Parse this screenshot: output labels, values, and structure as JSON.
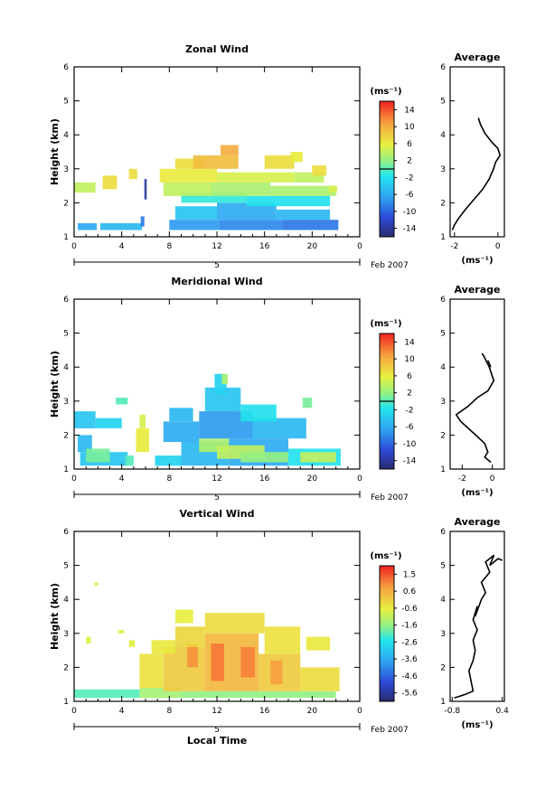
{
  "chart_data": [
    {
      "type": "heatmap",
      "title": "Zonal Wind",
      "ylabel": "Height (km)",
      "xticks": [
        "0",
        "4",
        "8",
        "12",
        "16",
        "20",
        "0"
      ],
      "yticks": [
        "1",
        "2",
        "3",
        "4",
        "5",
        "6"
      ],
      "xlim": [
        0,
        24
      ],
      "ylim": [
        1,
        6
      ],
      "date_day": "5",
      "date_label": "Feb 2007",
      "colorbar": {
        "unit": "(ms⁻¹)",
        "labels": [
          "14",
          "10",
          "6",
          "2",
          "-2",
          "-6",
          "-10",
          "-14"
        ],
        "range": [
          -16,
          16
        ]
      },
      "cells": [
        {
          "x": [
            0.3,
            1.9
          ],
          "y": [
            1.2,
            1.4
          ],
          "v": -6
        },
        {
          "x": [
            2.2,
            5.7
          ],
          "y": [
            1.2,
            1.4
          ],
          "v": -5
        },
        {
          "x": [
            8.0,
            12.2
          ],
          "y": [
            1.2,
            1.5
          ],
          "v": -7
        },
        {
          "x": [
            12.2,
            17.5
          ],
          "y": [
            1.2,
            1.5
          ],
          "v": -8
        },
        {
          "x": [
            17.5,
            22.2
          ],
          "y": [
            1.2,
            1.5
          ],
          "v": -9
        },
        {
          "x": [
            8.5,
            12.0
          ],
          "y": [
            1.5,
            1.9
          ],
          "v": -4
        },
        {
          "x": [
            12.0,
            17.0
          ],
          "y": [
            1.5,
            2.0
          ],
          "v": -6
        },
        {
          "x": [
            17.0,
            21.5
          ],
          "y": [
            1.5,
            1.8
          ],
          "v": -5
        },
        {
          "x": [
            9.0,
            14.5
          ],
          "y": [
            2.0,
            2.3
          ],
          "v": -1
        },
        {
          "x": [
            14.5,
            21.5
          ],
          "y": [
            1.9,
            2.2
          ],
          "v": -2
        },
        {
          "x": [
            7.5,
            11.5
          ],
          "y": [
            2.2,
            2.6
          ],
          "v": 4
        },
        {
          "x": [
            11.5,
            16.5
          ],
          "y": [
            2.2,
            2.6
          ],
          "v": 3
        },
        {
          "x": [
            16.5,
            22.0
          ],
          "y": [
            2.2,
            2.5
          ],
          "v": 3
        },
        {
          "x": [
            7.2,
            12.0
          ],
          "y": [
            2.6,
            3.0
          ],
          "v": 6
        },
        {
          "x": [
            12.0,
            18.5
          ],
          "y": [
            2.6,
            2.9
          ],
          "v": 5
        },
        {
          "x": [
            18.5,
            21.0
          ],
          "y": [
            2.6,
            2.9
          ],
          "v": 4
        },
        {
          "x": [
            8.5,
            11.0
          ],
          "y": [
            3.0,
            3.3
          ],
          "v": 7
        },
        {
          "x": [
            10.0,
            13.8
          ],
          "y": [
            3.0,
            3.4
          ],
          "v": 9
        },
        {
          "x": [
            12.3,
            13.8
          ],
          "y": [
            3.4,
            3.7
          ],
          "v": 10
        },
        {
          "x": [
            16.0,
            18.5
          ],
          "y": [
            3.0,
            3.4
          ],
          "v": 7
        },
        {
          "x": [
            18.2,
            19.2
          ],
          "y": [
            3.2,
            3.5
          ],
          "v": 6
        },
        {
          "x": [
            0.0,
            1.8
          ],
          "y": [
            2.3,
            2.6
          ],
          "v": 4
        },
        {
          "x": [
            2.4,
            3.6
          ],
          "y": [
            2.4,
            2.8
          ],
          "v": 7
        },
        {
          "x": [
            4.6,
            5.3
          ],
          "y": [
            2.7,
            3.0
          ],
          "v": 7
        },
        {
          "x": [
            5.9,
            6.1
          ],
          "y": [
            2.1,
            2.7
          ],
          "v": -14
        },
        {
          "x": [
            5.6,
            5.9
          ],
          "y": [
            1.3,
            1.6
          ],
          "v": -9
        },
        {
          "x": [
            20.0,
            21.2
          ],
          "y": [
            2.8,
            3.1
          ],
          "v": 7
        },
        {
          "x": [
            21.4,
            22.1
          ],
          "y": [
            2.3,
            2.5
          ],
          "v": 5
        }
      ],
      "profile": {
        "title": "Average",
        "xlabel": "(ms⁻¹)",
        "xticks": [
          "-2",
          "0"
        ],
        "xlim": [
          -2.2,
          0.3
        ],
        "ylim": [
          1,
          6
        ],
        "points": [
          [
            -0.9,
            4.5
          ],
          [
            -0.8,
            4.3
          ],
          [
            -0.6,
            4.05
          ],
          [
            -0.3,
            3.8
          ],
          [
            0.0,
            3.6
          ],
          [
            0.1,
            3.4
          ],
          [
            -0.1,
            3.2
          ],
          [
            -0.2,
            3.0
          ],
          [
            -0.4,
            2.7
          ],
          [
            -0.7,
            2.4
          ],
          [
            -1.1,
            2.1
          ],
          [
            -1.5,
            1.8
          ],
          [
            -1.8,
            1.55
          ],
          [
            -2.0,
            1.35
          ],
          [
            -2.1,
            1.2
          ]
        ]
      }
    },
    {
      "type": "heatmap",
      "title": "Meridional Wind",
      "ylabel": "Height (km)",
      "xticks": [
        "0",
        "4",
        "8",
        "12",
        "16",
        "20",
        "0"
      ],
      "yticks": [
        "1",
        "2",
        "3",
        "4",
        "5",
        "6"
      ],
      "xlim": [
        0,
        24
      ],
      "ylim": [
        1,
        6
      ],
      "date_day": "5",
      "date_label": "Feb 2007",
      "colorbar": {
        "unit": "(ms⁻¹)",
        "labels": [
          "14",
          "10",
          "6",
          "2",
          "-2",
          "-6",
          "-10",
          "-14"
        ],
        "range": [
          -16,
          16
        ]
      },
      "cells": [
        {
          "x": [
            0.5,
            4.5
          ],
          "y": [
            1.1,
            1.5
          ],
          "v": -4
        },
        {
          "x": [
            0.3,
            1.5
          ],
          "y": [
            1.5,
            2.0
          ],
          "v": -5
        },
        {
          "x": [
            1.0,
            3.0
          ],
          "y": [
            1.2,
            1.6
          ],
          "v": 1
        },
        {
          "x": [
            5.2,
            6.3
          ],
          "y": [
            1.5,
            2.2
          ],
          "v": 6
        },
        {
          "x": [
            5.5,
            6.0
          ],
          "y": [
            2.2,
            2.6
          ],
          "v": 5
        },
        {
          "x": [
            4.3,
            5.0
          ],
          "y": [
            1.1,
            1.4
          ],
          "v": 0
        },
        {
          "x": [
            6.8,
            9.0
          ],
          "y": [
            1.1,
            1.4
          ],
          "v": -3
        },
        {
          "x": [
            9.0,
            13.0
          ],
          "y": [
            1.1,
            1.8
          ],
          "v": -5
        },
        {
          "x": [
            13.0,
            18.0
          ],
          "y": [
            1.1,
            1.9
          ],
          "v": -6
        },
        {
          "x": [
            18.0,
            22.4
          ],
          "y": [
            1.1,
            1.6
          ],
          "v": -2
        },
        {
          "x": [
            10.5,
            13.0
          ],
          "y": [
            1.5,
            1.9
          ],
          "v": 3
        },
        {
          "x": [
            12.0,
            16.0
          ],
          "y": [
            1.3,
            1.7
          ],
          "v": 4
        },
        {
          "x": [
            14.0,
            18.0
          ],
          "y": [
            1.2,
            1.5
          ],
          "v": 2
        },
        {
          "x": [
            19.0,
            22.0
          ],
          "y": [
            1.2,
            1.5
          ],
          "v": 4
        },
        {
          "x": [
            7.5,
            10.5
          ],
          "y": [
            1.8,
            2.4
          ],
          "v": -6
        },
        {
          "x": [
            10.5,
            15.0
          ],
          "y": [
            1.9,
            2.7
          ],
          "v": -7
        },
        {
          "x": [
            15.0,
            19.5
          ],
          "y": [
            1.9,
            2.5
          ],
          "v": -5
        },
        {
          "x": [
            0.0,
            1.8
          ],
          "y": [
            2.2,
            2.7
          ],
          "v": -4
        },
        {
          "x": [
            1.8,
            4.0
          ],
          "y": [
            2.2,
            2.5
          ],
          "v": -3
        },
        {
          "x": [
            11.0,
            14.0
          ],
          "y": [
            2.7,
            3.4
          ],
          "v": -4
        },
        {
          "x": [
            11.8,
            12.8
          ],
          "y": [
            3.2,
            3.8
          ],
          "v": -3
        },
        {
          "x": [
            14.0,
            17.0
          ],
          "y": [
            2.4,
            2.9
          ],
          "v": -2
        },
        {
          "x": [
            8.0,
            10.0
          ],
          "y": [
            2.4,
            2.8
          ],
          "v": -5
        },
        {
          "x": [
            19.2,
            20.0
          ],
          "y": [
            2.8,
            3.1
          ],
          "v": 1
        },
        {
          "x": [
            3.5,
            4.5
          ],
          "y": [
            2.9,
            3.1
          ],
          "v": 0
        },
        {
          "x": [
            12.4,
            12.9
          ],
          "y": [
            3.5,
            3.8
          ],
          "v": 3
        }
      ],
      "profile": {
        "title": "Average",
        "xlabel": "(ms⁻¹)",
        "xticks": [
          "-2",
          "0"
        ],
        "xlim": [
          -2.8,
          0.8
        ],
        "ylim": [
          1,
          6
        ],
        "points": [
          [
            -0.7,
            4.4
          ],
          [
            -0.6,
            4.35
          ],
          [
            -0.2,
            4.0
          ],
          [
            0.1,
            3.6
          ],
          [
            -0.3,
            3.3
          ],
          [
            -1.0,
            3.1
          ],
          [
            -1.6,
            2.85
          ],
          [
            -2.4,
            2.6
          ],
          [
            -2.1,
            2.4
          ],
          [
            -1.6,
            2.2
          ],
          [
            -1.1,
            2.0
          ],
          [
            -0.5,
            1.75
          ],
          [
            -0.3,
            1.5
          ],
          [
            -0.5,
            1.35
          ],
          [
            -0.1,
            1.2
          ]
        ],
        "extra_segment": [
          [
            -0.3,
            4.2
          ],
          [
            -0.1,
            4.0
          ]
        ]
      }
    },
    {
      "type": "heatmap",
      "title": "Vertical Wind",
      "ylabel": "Height (km)",
      "xlabel": "Local Time",
      "xticks": [
        "0",
        "4",
        "8",
        "12",
        "16",
        "20",
        "0"
      ],
      "yticks": [
        "1",
        "2",
        "3",
        "4",
        "5",
        "6"
      ],
      "xlim": [
        0,
        24
      ],
      "ylim": [
        1,
        6
      ],
      "date_day": "5",
      "date_label": "Feb 2007",
      "colorbar": {
        "unit": "(ms⁻¹)",
        "labels": [
          "1.5",
          "0.6",
          "-0.6",
          "-1.6",
          "-2.6",
          "-3.6",
          "-4.6",
          "-5.6"
        ],
        "range": [
          -6.2,
          2.0
        ]
      },
      "cells": [
        {
          "x": [
            0.0,
            5.5
          ],
          "y": [
            1.1,
            1.35
          ],
          "v": -2.1
        },
        {
          "x": [
            5.5,
            9.0
          ],
          "y": [
            1.1,
            1.4
          ],
          "v": -1.4
        },
        {
          "x": [
            9.0,
            22.0
          ],
          "y": [
            1.1,
            1.3
          ],
          "v": -1.6
        },
        {
          "x": [
            5.5,
            7.5
          ],
          "y": [
            1.4,
            2.4
          ],
          "v": -0.4
        },
        {
          "x": [
            7.5,
            11.0
          ],
          "y": [
            1.3,
            2.6
          ],
          "v": 0.0
        },
        {
          "x": [
            11.0,
            15.5
          ],
          "y": [
            1.3,
            3.0
          ],
          "v": 0.3
        },
        {
          "x": [
            15.5,
            19.0
          ],
          "y": [
            1.3,
            2.4
          ],
          "v": 0.0
        },
        {
          "x": [
            19.0,
            22.3
          ],
          "y": [
            1.3,
            2.0
          ],
          "v": -0.3
        },
        {
          "x": [
            11.5,
            12.6
          ],
          "y": [
            1.6,
            2.7
          ],
          "v": 1.1
        },
        {
          "x": [
            14.0,
            15.2
          ],
          "y": [
            1.7,
            2.6
          ],
          "v": 1.0
        },
        {
          "x": [
            9.5,
            10.4
          ],
          "y": [
            2.0,
            2.7
          ],
          "v": 0.8
        },
        {
          "x": [
            16.5,
            17.5
          ],
          "y": [
            1.5,
            2.2
          ],
          "v": 0.7
        },
        {
          "x": [
            8.5,
            11.0
          ],
          "y": [
            2.6,
            3.2
          ],
          "v": -0.2
        },
        {
          "x": [
            11.0,
            16.0
          ],
          "y": [
            3.0,
            3.6
          ],
          "v": -0.3
        },
        {
          "x": [
            16.0,
            19.0
          ],
          "y": [
            2.4,
            3.2
          ],
          "v": -0.4
        },
        {
          "x": [
            19.5,
            21.5
          ],
          "y": [
            2.5,
            2.9
          ],
          "v": -0.5
        },
        {
          "x": [
            6.5,
            8.5
          ],
          "y": [
            2.4,
            2.8
          ],
          "v": -0.5
        },
        {
          "x": [
            8.5,
            10.0
          ],
          "y": [
            3.3,
            3.7
          ],
          "v": -0.6
        },
        {
          "x": [
            4.6,
            5.1
          ],
          "y": [
            2.6,
            2.8
          ],
          "v": -0.7
        },
        {
          "x": [
            1.0,
            1.4
          ],
          "y": [
            2.7,
            2.9
          ],
          "v": -0.7
        },
        {
          "x": [
            1.7,
            2.0
          ],
          "y": [
            4.4,
            4.5
          ],
          "v": -0.8
        },
        {
          "x": [
            3.7,
            4.2
          ],
          "y": [
            3.0,
            3.1
          ],
          "v": -0.7
        }
      ],
      "profile": {
        "title": "Average",
        "xlabel": "(ms⁻¹)",
        "xticks": [
          "-0.8",
          "0.4"
        ],
        "xlim": [
          -0.85,
          0.45
        ],
        "ylim": [
          1,
          6
        ],
        "points": [
          [
            -0.75,
            1.1
          ],
          [
            -0.5,
            1.2
          ],
          [
            -0.3,
            1.3
          ],
          [
            -0.35,
            1.6
          ],
          [
            -0.4,
            1.9
          ],
          [
            -0.3,
            2.2
          ],
          [
            -0.25,
            2.5
          ],
          [
            -0.3,
            2.8
          ],
          [
            -0.2,
            3.1
          ],
          [
            -0.3,
            3.4
          ],
          [
            -0.2,
            3.8
          ],
          [
            -0.25,
            3.5
          ],
          [
            -0.1,
            4.0
          ],
          [
            0.0,
            4.2
          ],
          [
            -0.1,
            4.5
          ],
          [
            0.1,
            4.8
          ],
          [
            0.0,
            5.1
          ],
          [
            0.2,
            5.3
          ],
          [
            0.1,
            5.0
          ],
          [
            0.3,
            5.2
          ],
          [
            0.4,
            5.15
          ]
        ]
      }
    }
  ]
}
